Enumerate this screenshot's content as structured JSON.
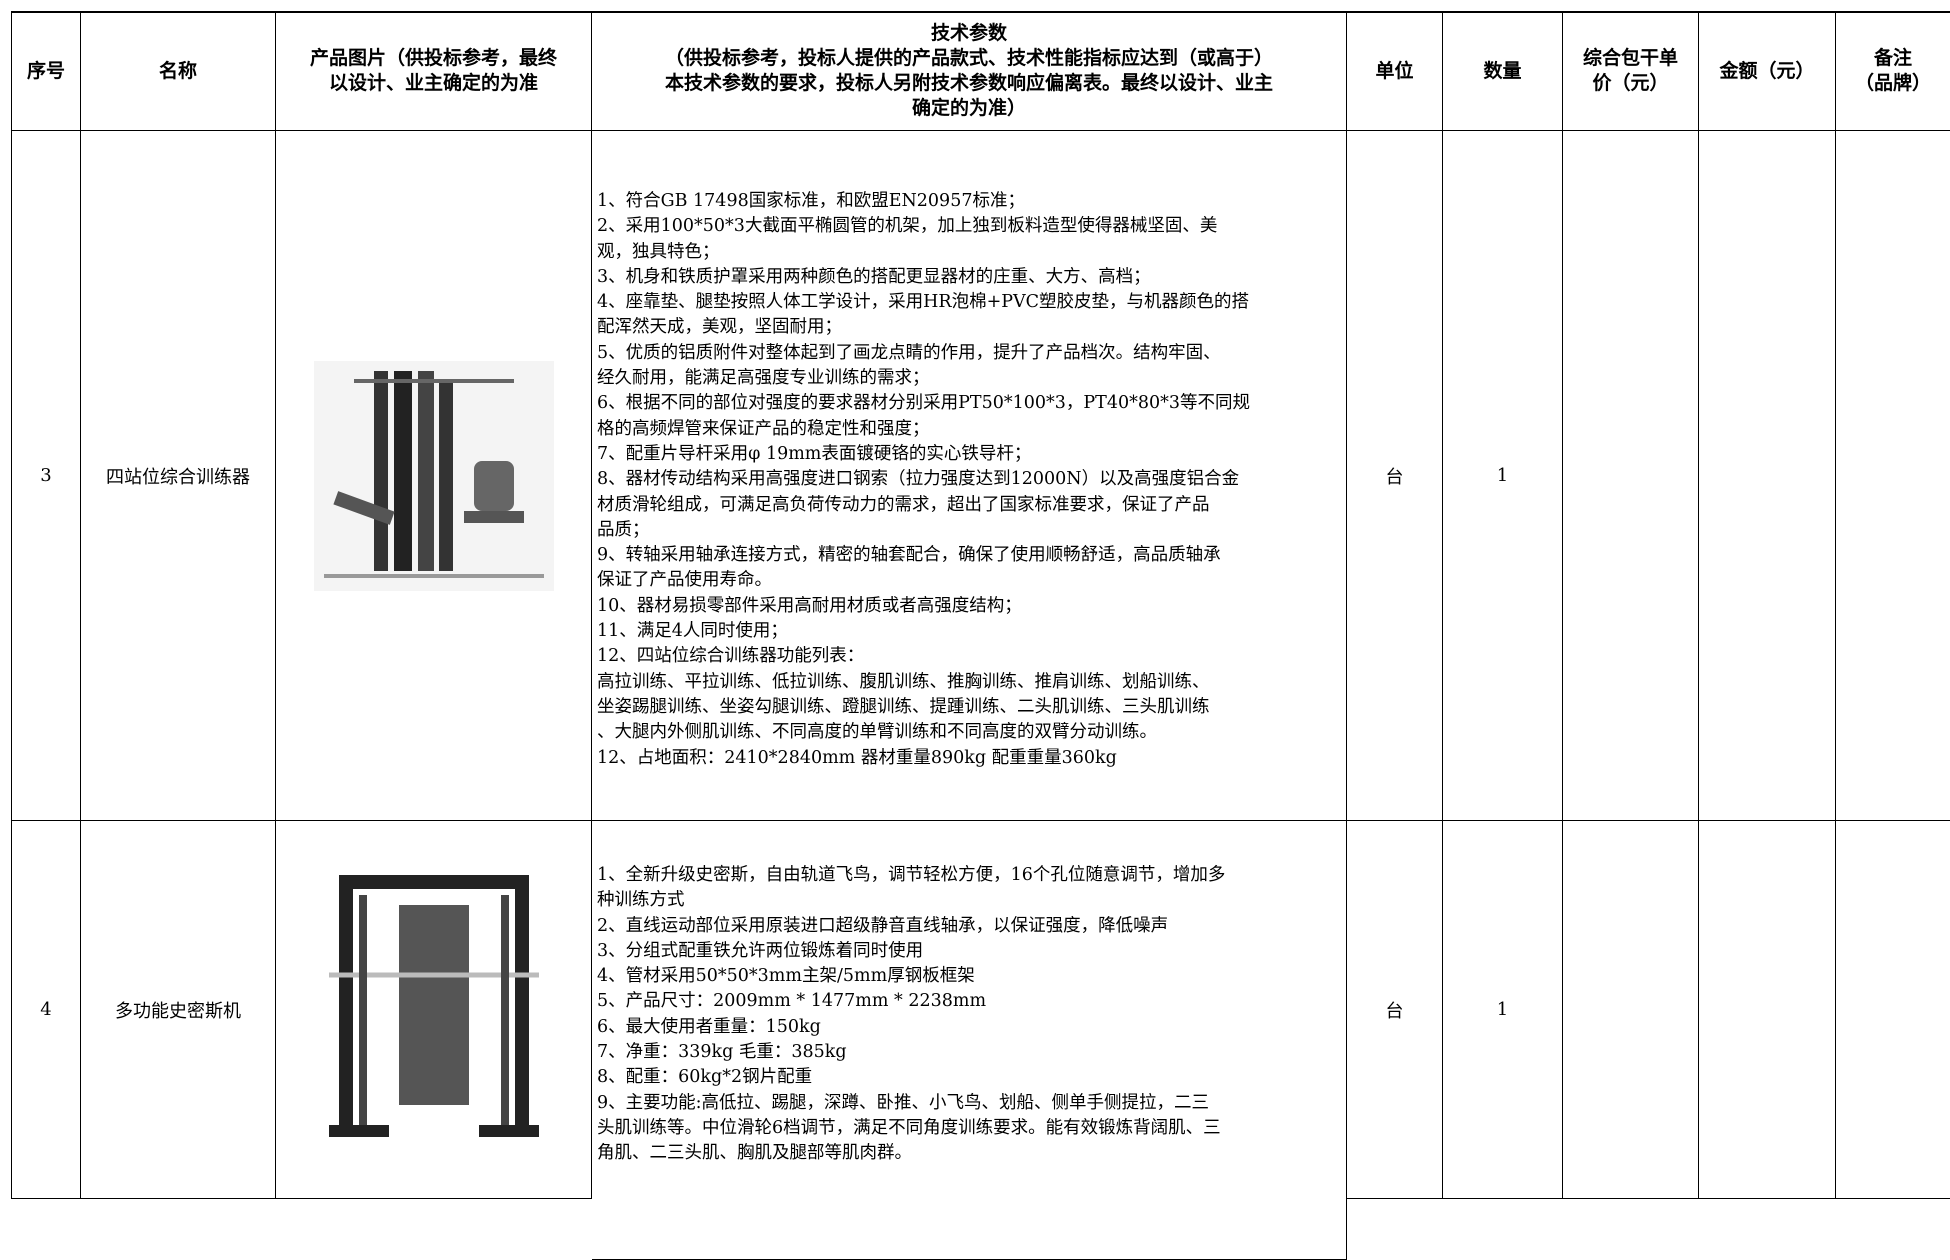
{
  "table": {
    "header": [
      [
        "序号"
      ],
      [
        "名称"
      ],
      [
        "产品图片（供投标参考，最终",
        "以设计、业主确定的为准"
      ],
      [
        "技术参数",
        "（供投标参考，投标人提供的产品款式、技术性能指标应达到（或高于）",
        "本技术参数的要求，投标人另附技术参数响应偏离表。最终以设计、业主",
        "确定的为准）"
      ],
      [
        "单位"
      ],
      [
        "数量"
      ],
      [
        "综合包干单",
        "价（元）"
      ],
      [
        "金额（元）"
      ],
      [
        "备注",
        "（品牌）"
      ]
    ],
    "rows": [
      {
        "no": "3",
        "name": "四站位综合训练器",
        "unit": "台",
        "qty": "1",
        "params": [
          "1、符合GB 17498国家标准，和欧盟EN20957标准；",
          "2、采用100*50*3大截面平椭圆管的机架，加上独到板料造型使得器械坚固、美",
          "观，独具特色；",
          "3、机身和铁质护罩采用两种颜色的搭配更显器材的庄重、大方、高档；",
          "4、座靠垫、腿垫按照人体工学设计，采用HR泡棉+PVC塑胶皮垫，与机器颜色的搭",
          "配浑然天成，美观，坚固耐用；",
          "5、优质的铝质附件对整体起到了画龙点睛的作用，提升了产品档次。结构牢固、",
          "经久耐用，能满足高强度专业训练的需求；",
          "6、根据不同的部位对强度的要求器材分别采用PT50*100*3，PT40*80*3等不同规",
          "格的高频焊管来保证产品的稳定性和强度；",
          "7、配重片导杆采用φ 19mm表面镀硬铬的实心铁导杆；",
          "8、器材传动结构采用高强度进口钢索（拉力强度达到12000N）以及高强度铝合金",
          "材质滑轮组成，可满足高负荷传动力的需求，超出了国家标准要求，保证了产品",
          "品质；",
          "9、转轴采用轴承连接方式，精密的轴套配合，确保了使用顺畅舒适，高品质轴承",
          "保证了产品使用寿命。",
          "10、器材易损零部件采用高耐用材质或者高强度结构；",
          "11、满足4人同时使用；",
          "12、四站位综合训练器功能列表：",
          "高拉训练、平拉训练、低拉训练、腹肌训练、推胸训练、推肩训练、划船训练、",
          "坐姿踢腿训练、坐姿勾腿训练、蹬腿训练、提踵训练、二头肌训练、三头肌训练",
          "、大腿内外侧肌训练、不同高度的单臂训练和不同高度的双臂分动训练。",
          "12、占地面积：2410*2840mm 器材重量890kg  配重重量360kg"
        ]
      },
      {
        "no": "4",
        "name": "多功能史密斯机",
        "unit": "台",
        "qty": "1",
        "params": [
          "1、全新升级史密斯，自由轨道飞鸟，调节轻松方便，16个孔位随意调节，增加多",
          "种训练方式",
          "2、直线运动部位采用原装进口超级静音直线轴承，以保证强度，降低噪声",
          "3、分组式配重铁允许两位锻炼着同时使用",
          "4、管材采用50*50*3mm主架/5mm厚钢板框架",
          "5、产品尺寸：2009mm * 1477mm * 2238mm",
          "6、最大使用者重量：150kg",
          "7、净重：339kg     毛重：385kg",
          "8、配重：60kg*2钢片配重",
          "9、主要功能:高低拉、踢腿，深蹲、卧推、小飞鸟、划船、侧单手侧提拉，二三",
          "头肌训练等。中位滑轮6档调节，满足不同角度训练要求。能有效锻炼背阔肌、三",
          "角肌、二三头肌、胸肌及腿部等肌肉群。"
        ]
      }
    ]
  }
}
